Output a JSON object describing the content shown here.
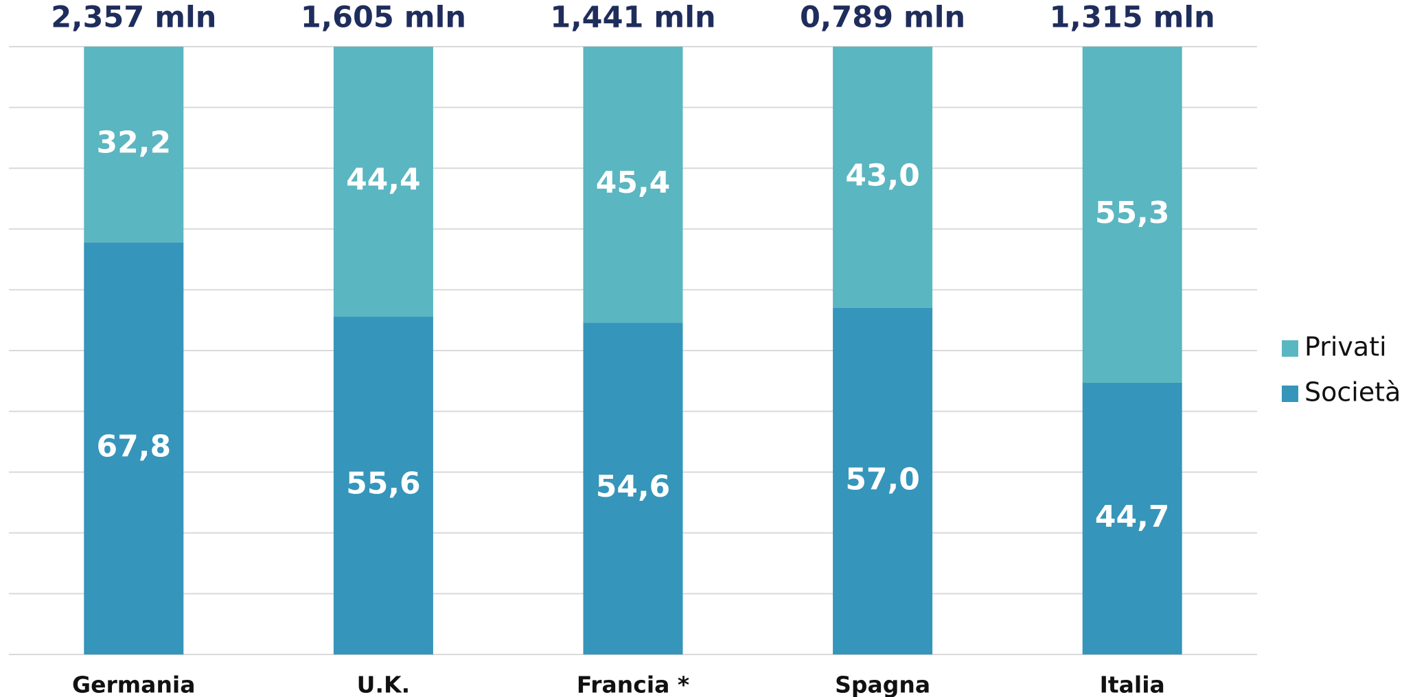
{
  "chart_data": {
    "type": "stacked_bar",
    "categories": [
      "Germania",
      "U.K.",
      "Francia *",
      "Spagna",
      "Italia"
    ],
    "series": [
      {
        "name": "Società",
        "color": "#3595ba",
        "values": [
          67.8,
          55.6,
          54.6,
          57.0,
          44.7
        ],
        "value_labels": [
          "67,8",
          "55,6",
          "54,6",
          "57,0",
          "44,7"
        ]
      },
      {
        "name": "Privati",
        "color": "#5ab6c1",
        "values": [
          32.2,
          44.4,
          45.4,
          43.0,
          55.3
        ],
        "value_labels": [
          "32,2",
          "44,4",
          "45,4",
          "43,0",
          "55,3"
        ]
      }
    ],
    "totals": {
      "values": [
        2.357,
        1.605,
        1.441,
        0.789,
        1.315
      ],
      "value_labels": [
        "2,357 mln",
        "1,605 mln",
        "1,441 mln",
        "0,789 mln",
        "1,315 mln"
      ]
    },
    "ylim": [
      0,
      100
    ],
    "yticks": [
      0,
      10,
      20,
      30,
      40,
      50,
      60,
      70,
      80,
      90,
      100
    ],
    "grid": true,
    "legend": "right"
  }
}
